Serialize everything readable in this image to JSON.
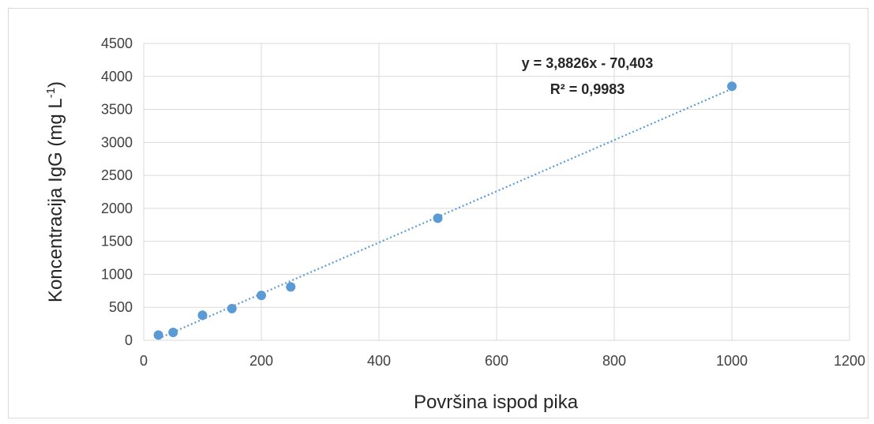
{
  "chart_data": {
    "type": "scatter",
    "title": "",
    "xlabel": "Površina ispod pika",
    "ylabel": {
      "main": "Koncentracija IgG (mg L",
      "sup": "-1",
      "close": ")"
    },
    "xlim": [
      0,
      1200
    ],
    "ylim": [
      0,
      4500
    ],
    "xticks": [
      "0",
      "200",
      "400",
      "600",
      "800",
      "1000",
      "1200"
    ],
    "yticks": [
      "0",
      "500",
      "1000",
      "1500",
      "2000",
      "2500",
      "3000",
      "3500",
      "4000",
      "4500"
    ],
    "grid": true,
    "marker_color": "#5b9bd5",
    "trendline_color": "#5b9bd5",
    "series": [
      {
        "x": [
          25,
          50,
          100,
          150,
          200,
          250,
          500,
          1000
        ],
        "y": [
          80,
          120,
          380,
          480,
          680,
          810,
          1850,
          3850
        ]
      }
    ],
    "trendline": {
      "type": "linear",
      "slope": 3.8826,
      "intercept": -70.403,
      "equation": "y = 3,8826x - 70,403",
      "r2_label": "R² = 0,9983"
    }
  }
}
